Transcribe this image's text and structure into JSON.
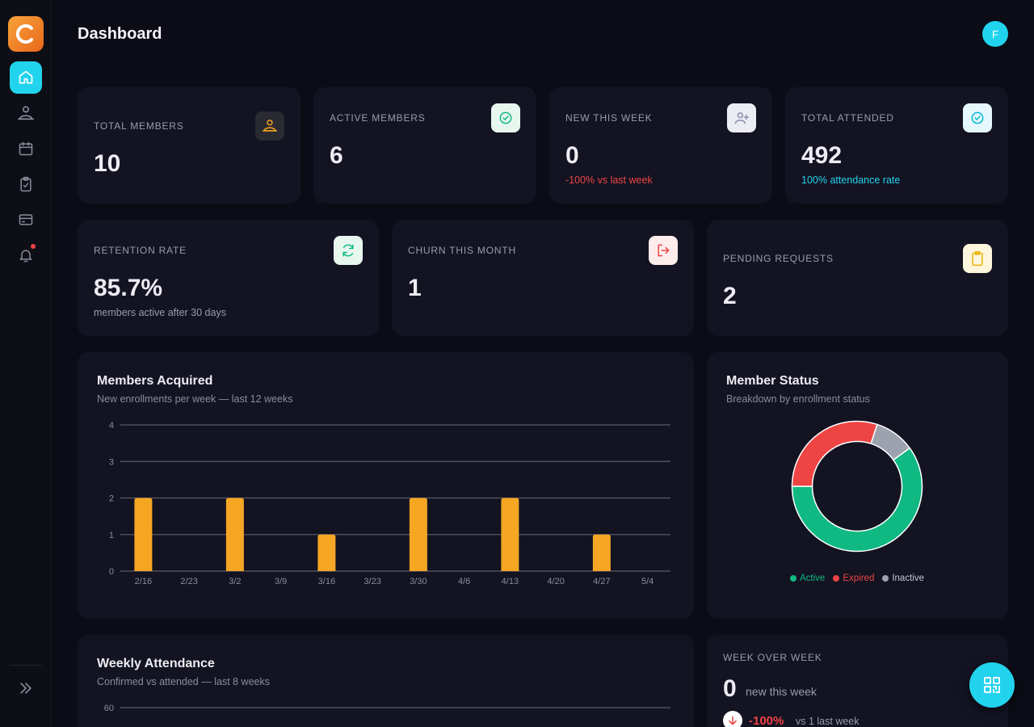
{
  "header": {
    "title": "Dashboard",
    "avatar_initial": "F"
  },
  "sidebar": {
    "items": [
      {
        "icon": "home-icon",
        "active": true
      },
      {
        "icon": "members-icon",
        "active": false
      },
      {
        "icon": "calendar-icon",
        "active": false
      },
      {
        "icon": "clipboard-check-icon",
        "active": false
      },
      {
        "icon": "credit-card-icon",
        "active": false
      },
      {
        "icon": "bell-icon",
        "active": false,
        "has_notification": true
      }
    ],
    "expand_icon": "chevrons-right-icon"
  },
  "stats": {
    "total_members": {
      "label": "TOTAL MEMBERS",
      "value": "10",
      "icon": "members-icon"
    },
    "active_members": {
      "label": "ACTIVE MEMBERS",
      "value": "6",
      "icon": "check-circle-icon"
    },
    "new_this_week": {
      "label": "NEW THIS WEEK",
      "value": "0",
      "sub": "-100% vs last week",
      "icon": "user-plus-icon"
    },
    "total_attended": {
      "label": "TOTAL ATTENDED",
      "value": "492",
      "sub": "100% attendance rate",
      "icon": "check-circle-icon"
    },
    "retention_rate": {
      "label": "RETENTION RATE",
      "value": "85.7%",
      "sub": "members active after 30 days",
      "icon": "refresh-icon"
    },
    "churn_this_month": {
      "label": "CHURN THIS MONTH",
      "value": "1",
      "icon": "logout-icon"
    },
    "pending_requests": {
      "label": "PENDING REQUESTS",
      "value": "2",
      "icon": "clipboard-icon"
    }
  },
  "members_acquired": {
    "title": "Members Acquired",
    "subtitle": "New enrollments per week — last 12 weeks"
  },
  "member_status": {
    "title": "Member Status",
    "subtitle": "Breakdown by enrollment status"
  },
  "weekly_attendance": {
    "title": "Weekly Attendance",
    "subtitle": "Confirmed vs attended — last 8 weeks"
  },
  "week_over_week": {
    "label": "WEEK OVER WEEK",
    "value": "0",
    "value_sub": "new this week",
    "trend_pct": "-100%",
    "trend_sub": "vs 1 last week",
    "trend_icon": "arrow-down-icon"
  },
  "fab": {
    "icon": "qr-code-icon"
  },
  "colors": {
    "accent": "#22d3ee",
    "bar": "#f5a623",
    "active": "#10b981",
    "expired": "#ef4444",
    "inactive": "#9ca3af"
  },
  "chart_data": [
    {
      "type": "bar",
      "categories": [
        "2/16",
        "2/23",
        "3/2",
        "3/9",
        "3/16",
        "3/23",
        "3/30",
        "4/6",
        "4/13",
        "4/20",
        "4/27",
        "5/4"
      ],
      "values": [
        2,
        0,
        2,
        0,
        1,
        0,
        2,
        0,
        2,
        0,
        1,
        0
      ],
      "yticks": [
        0,
        1,
        2,
        3,
        4
      ],
      "ylim": [
        0,
        4
      ],
      "grid": true
    },
    {
      "type": "pie",
      "labels": [
        "Active",
        "Expired",
        "Inactive"
      ],
      "values": [
        6,
        3,
        1
      ],
      "colors": [
        "#10b981",
        "#ef4444",
        "#9ca3af"
      ],
      "legend": "bottom"
    },
    {
      "type": "line",
      "yticks": [
        60
      ],
      "grid": true
    }
  ]
}
